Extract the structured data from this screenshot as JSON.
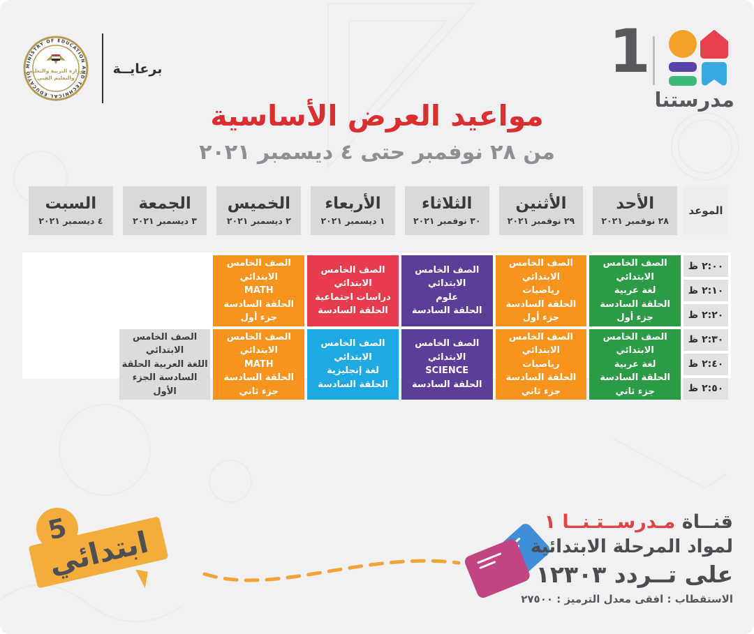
{
  "colors": {
    "green": "#2b9c45",
    "orange": "#f7941e",
    "purple": "#5b3e98",
    "red": "#e73b4e",
    "blue": "#1fa9e2",
    "gray": "#dcdcdd",
    "accent_red": "#d92f2f",
    "yellow": "#f2ad3c",
    "header_gray": "#d9d9da",
    "time_chip_gray": "#e2e2e4"
  },
  "brand": {
    "patronage": "برعايــة",
    "channel_number": "1",
    "channel_name": "مدرستنا",
    "seal_ring_text": "MINISTRY OF EDUCATION AND TECHNICAL EDUCATION",
    "seal_center_line1": "وزارة التربية والتعليم",
    "seal_center_line2": "والتعليم الفني"
  },
  "title": {
    "main": "مواعيد العرض الأساسية",
    "subtitle": "من ٢٨ نوفمبر حتى ٤ ديسمبر ٢٠٢١"
  },
  "schedule": {
    "time_header": "الموعد",
    "days": [
      {
        "name": "الأحد",
        "date": "٢٨ نوفمبر ٢٠٢١"
      },
      {
        "name": "الأثنين",
        "date": "٢٩ نوفمبر ٢٠٢١"
      },
      {
        "name": "الثلاثاء",
        "date": "٣٠ نوفمبر ٢٠٢١"
      },
      {
        "name": "الأربعاء",
        "date": "١ ديسمبر ٢٠٢١"
      },
      {
        "name": "الخميس",
        "date": "٢ ديسمبر ٢٠٢١"
      },
      {
        "name": "الجمعة",
        "date": "٣ ديسمبر ٢٠٢١"
      },
      {
        "name": "السبت",
        "date": "٤ ديسمبر ٢٠٢١"
      }
    ],
    "times": [
      "٢:٠٠ ظ",
      "٢:١٠ ظ",
      "٢:٢٠ ظ",
      "٢:٣٠ ظ",
      "٢:٤٠ ظ",
      "٢:٥٠ ظ"
    ],
    "rows": [
      {
        "slots": [
          {
            "color": "green",
            "lines": [
              "الصف الخامس الابتدائي",
              "لغة عربية",
              "الحلقة السادسة",
              "جزء أول"
            ]
          },
          {
            "color": "orange",
            "lines": [
              "الصف الخامس الابتدائي",
              "رياضيات",
              "الحلقة السادسة",
              "جزء أول"
            ]
          },
          {
            "color": "purple",
            "lines": [
              "الصف الخامس الابتدائي",
              "علوم",
              "الحلقة السادسة"
            ]
          },
          {
            "color": "red",
            "lines": [
              "الصف الخامس الابتدائي",
              "دراسات اجتماعية",
              "الحلقة السادسة"
            ]
          },
          {
            "color": "orange",
            "lines": [
              "الصف الخامس الابتدائي",
              "MATH",
              "الحلقة السادسة",
              "جزء أول"
            ]
          },
          null,
          null
        ]
      },
      {
        "slots": [
          {
            "color": "green",
            "lines": [
              "الصف الخامس الابتدائي",
              "لغة عربية",
              "الحلقة السادسة",
              "جزء ثاني"
            ]
          },
          {
            "color": "orange",
            "lines": [
              "الصف الخامس الابتدائي",
              "رياضيات",
              "الحلقة السادسة",
              "جزء ثاني"
            ]
          },
          {
            "color": "purple",
            "lines": [
              "الصف الخامس الابتدائي",
              "SCIENCE",
              "الحلقة السادسة"
            ]
          },
          {
            "color": "blue",
            "lines": [
              "الصف الخامس الابتدائي",
              "لغة إنجليزية",
              "الحلقة السادسة"
            ]
          },
          {
            "color": "orange",
            "lines": [
              "الصف الخامس الابتدائي",
              "MATH",
              "الحلقة السادسة",
              "جزء ثاني"
            ]
          },
          {
            "color": "gray",
            "lines": [
              "الصف الخامس الابتدائي",
              "اللغة العربية الحلقة",
              "السادسة  الجزء الأول"
            ]
          },
          null
        ]
      }
    ]
  },
  "footer": {
    "grade_number": "5",
    "grade_label": "ابتدائي",
    "channel_prefix": "قنــاة",
    "channel_name_red": "مـدرســتـنــا ١",
    "line2": "لمواد المرحلة الابتدائية",
    "line3": "على تــردد ١٢٣٠٣",
    "line4": "الاستقطاب : افقى معدل الترميز : ٢٧٥٠٠"
  }
}
